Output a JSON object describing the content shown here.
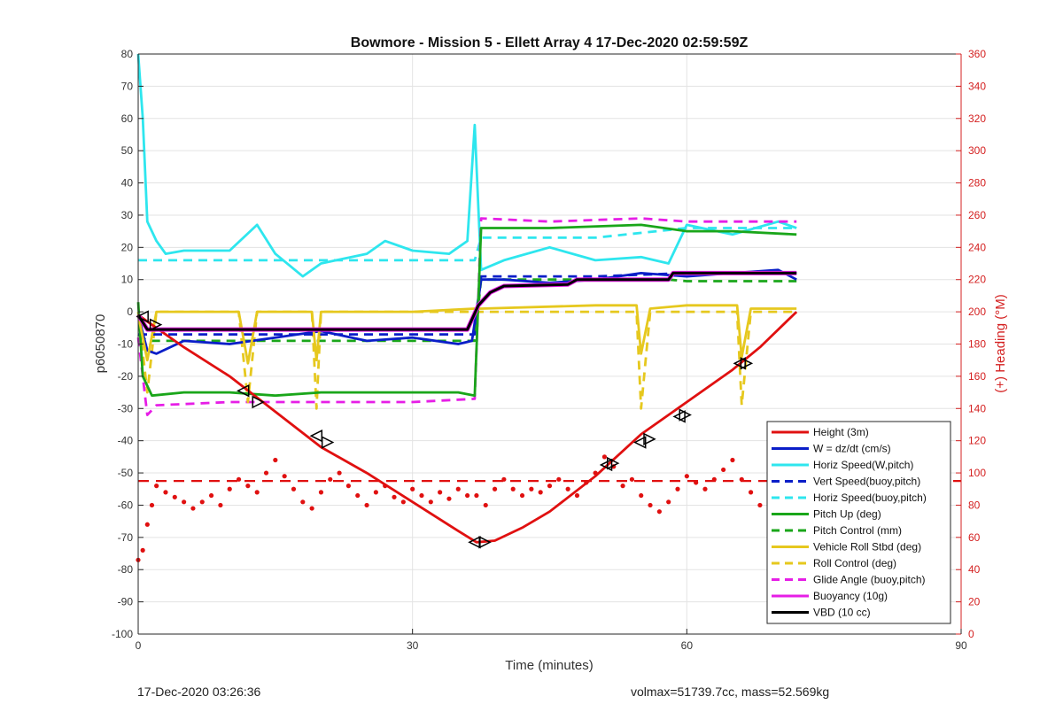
{
  "figure": {
    "title": "Bowmore - Mission 5 - Ellett Array 4 17-Dec-2020 02:59:59Z",
    "footer_left": "17-Dec-2020 03:26:36",
    "footer_right": "volmax=51739.7cc, mass=52.569kg"
  },
  "colors": {
    "red": "#e01010",
    "blue": "#0a1ec8",
    "cyan": "#2ee6ee",
    "green": "#1aa61a",
    "yellow": "#e6c81e",
    "magenta": "#e61ee6",
    "black": "#000000",
    "right_axis": "#d42020"
  },
  "chart_data": {
    "type": "line",
    "title": "Bowmore - Mission 5 - Ellett Array 4 17-Dec-2020 02:59:59Z",
    "xlabel": "Time (minutes)",
    "ylabel": "p6050870",
    "ylabel_right": "(+) Heading (°M)",
    "xlim": [
      0,
      90
    ],
    "ylim": [
      -100,
      80
    ],
    "ylim_right": [
      0,
      360
    ],
    "xticks": [
      0,
      30,
      60,
      90
    ],
    "yticks": [
      -100,
      -90,
      -80,
      -70,
      -60,
      -50,
      -40,
      -30,
      -20,
      -10,
      0,
      10,
      20,
      30,
      40,
      50,
      60,
      70,
      80
    ],
    "yticks_right": [
      0,
      20,
      40,
      60,
      80,
      100,
      120,
      140,
      160,
      180,
      200,
      220,
      240,
      260,
      280,
      300,
      320,
      340,
      360
    ],
    "grid": true,
    "legend_position": "bottom-right",
    "series": [
      {
        "name": "Height (3m)",
        "style": "solid",
        "color": "#e01010",
        "x": [
          0,
          2,
          5,
          10,
          15,
          20,
          25,
          30,
          35,
          37,
          39,
          42,
          45,
          50,
          55,
          60,
          65,
          68,
          72
        ],
        "y": [
          -1,
          -5,
          -11,
          -20,
          -31,
          -42,
          -50,
          -59,
          -68,
          -71.5,
          -71,
          -67,
          -62,
          -51,
          -38,
          -28,
          -18,
          -11,
          0
        ]
      },
      {
        "name": "W = dz/dt (cm/s)",
        "style": "solid",
        "color": "#0a1ec8",
        "x": [
          0,
          1,
          2,
          5,
          10,
          15,
          20,
          25,
          30,
          35,
          36.5,
          37.5,
          40,
          45,
          50,
          55,
          60,
          65,
          70,
          72
        ],
        "y": [
          -1,
          -12,
          -13,
          -9,
          -10,
          -8,
          -6,
          -9,
          -8,
          -10,
          -9,
          10,
          10,
          9,
          10,
          12,
          11,
          12,
          13,
          10
        ]
      },
      {
        "name": "Horiz Speed(W,pitch)",
        "style": "solid",
        "color": "#2ee6ee",
        "x": [
          0,
          0.5,
          1,
          2,
          3,
          5,
          10,
          13,
          15,
          18,
          20,
          25,
          27,
          30,
          34,
          36,
          36.8,
          37.5,
          40,
          45,
          50,
          55,
          58,
          60,
          65,
          70,
          72
        ],
        "y": [
          80,
          60,
          28,
          22,
          18,
          19,
          19,
          27,
          18,
          11,
          15,
          18,
          22,
          19,
          18,
          22,
          58,
          13,
          16,
          20,
          16,
          17,
          15,
          27,
          24,
          28,
          26
        ]
      },
      {
        "name": "Vert Speed(buoy,pitch)",
        "style": "dashed",
        "color": "#0a1ec8",
        "x": [
          0,
          2,
          10,
          20,
          30,
          36.8,
          37.5,
          50,
          60,
          72
        ],
        "y": [
          -7,
          -7,
          -7,
          -7,
          -7,
          -7,
          11,
          11,
          12,
          12
        ]
      },
      {
        "name": "Horiz Speed(buoy,pitch)",
        "style": "dashed",
        "color": "#2ee6ee",
        "x": [
          0,
          2,
          10,
          20,
          30,
          36.8,
          37.5,
          50,
          60,
          72
        ],
        "y": [
          16,
          16,
          16,
          16,
          16,
          16,
          23,
          23,
          26,
          26
        ]
      },
      {
        "name": "Pitch Up (deg)",
        "style": "solid",
        "color": "#1aa61a",
        "x": [
          0,
          0.5,
          1.5,
          5,
          10,
          15,
          20,
          25,
          30,
          35,
          36.8,
          37.5,
          45,
          55,
          60,
          65,
          72
        ],
        "y": [
          3,
          -20,
          -26,
          -25,
          -25,
          -26,
          -25,
          -25,
          -25,
          -25,
          -26,
          26,
          26,
          27,
          25,
          25,
          24
        ]
      },
      {
        "name": "Pitch Control (mm)",
        "style": "dashed",
        "color": "#1aa61a",
        "x": [
          0,
          1,
          2,
          10,
          20,
          30,
          36.8,
          37.5,
          45,
          50,
          58,
          60,
          72
        ],
        "y": [
          -7,
          -9,
          -9,
          -9,
          -9,
          -9,
          -9,
          10,
          10,
          10,
          10,
          9.5,
          9.5
        ]
      },
      {
        "name": "Vehicle Roll Stbd (deg)",
        "style": "solid",
        "color": "#e6c81e",
        "x": [
          0,
          1,
          2,
          11,
          12,
          13,
          19,
          19.5,
          20,
          30,
          36.8,
          37.5,
          50,
          54.5,
          55,
          56,
          60,
          65.5,
          66,
          67,
          72
        ],
        "y": [
          -1,
          -15,
          0,
          0,
          -16,
          0,
          0,
          -15,
          0,
          0,
          1,
          1,
          2,
          2,
          -13,
          1,
          2,
          2,
          -14,
          1,
          1
        ]
      },
      {
        "name": "Roll Control (deg)",
        "style": "dashed",
        "color": "#e6c81e",
        "x": [
          0,
          1,
          2,
          11,
          12,
          13,
          19,
          19.5,
          20,
          30,
          36.8,
          37.5,
          50,
          54.5,
          55,
          56,
          60,
          65.5,
          66,
          67,
          72
        ],
        "y": [
          0,
          -25,
          0,
          0,
          -28,
          0,
          0,
          -30,
          0,
          0,
          0,
          0,
          0,
          0,
          -30,
          0,
          0,
          0,
          -29,
          0,
          0
        ]
      },
      {
        "name": "Glide Angle (buoy,pitch)",
        "style": "dashed",
        "color": "#e61ee6",
        "x": [
          0,
          1,
          2,
          10,
          20,
          30,
          36.8,
          37.5,
          45,
          55,
          60,
          72
        ],
        "y": [
          -8,
          -32,
          -29,
          -28,
          -28,
          -28,
          -27,
          29,
          28,
          29,
          28,
          28
        ]
      },
      {
        "name": "Buoyancy (10g)",
        "style": "solid",
        "color": "#e61ee6",
        "x": [
          0,
          1,
          20,
          36,
          37.2,
          38.5,
          40,
          47,
          48,
          58,
          58.5,
          72
        ],
        "y": [
          -1,
          -5.5,
          -5.5,
          -5.5,
          2,
          6,
          8,
          8.5,
          10,
          10,
          12,
          12
        ]
      },
      {
        "name": "VBD (10 cc)",
        "style": "solid",
        "color": "#000000",
        "x": [
          0,
          1,
          20,
          36,
          37.2,
          38.5,
          40,
          47,
          48,
          58,
          58.5,
          72
        ],
        "y": [
          -1,
          -5.5,
          -5.5,
          -5.5,
          2,
          6,
          8,
          8.5,
          10,
          10,
          12,
          12
        ]
      }
    ],
    "heading_series": {
      "axis": "right",
      "color": "#e01010",
      "style": "dotted",
      "x": [
        0,
        0.5,
        1,
        1.5,
        2,
        3,
        4,
        5,
        6,
        7,
        8,
        9,
        10,
        11,
        12,
        13,
        14,
        15,
        16,
        17,
        18,
        19,
        20,
        21,
        22,
        23,
        24,
        25,
        26,
        27,
        28,
        29,
        30,
        31,
        32,
        33,
        34,
        35,
        36,
        37,
        38,
        39,
        40,
        41,
        42,
        43,
        44,
        45,
        46,
        47,
        48,
        49,
        50,
        51,
        52,
        53,
        54,
        55,
        56,
        57,
        58,
        59,
        60,
        61,
        62,
        63,
        64,
        65,
        66,
        67,
        68,
        69,
        70,
        71,
        72
      ],
      "y": [
        46,
        52,
        68,
        80,
        92,
        88,
        85,
        82,
        78,
        82,
        86,
        80,
        90,
        96,
        92,
        88,
        100,
        108,
        98,
        90,
        82,
        78,
        88,
        96,
        100,
        92,
        86,
        80,
        88,
        92,
        85,
        82,
        90,
        86,
        82,
        88,
        84,
        90,
        86,
        86,
        80,
        90,
        96,
        90,
        86,
        90,
        88,
        92,
        96,
        90,
        86,
        94,
        100,
        110,
        104,
        92,
        96,
        86,
        80,
        76,
        82,
        90,
        98,
        94,
        90,
        96,
        102,
        108,
        96,
        88,
        80,
        86,
        80,
        86,
        84
      ]
    },
    "heading_mean": {
      "axis": "right",
      "color": "#e01010",
      "style": "dashed",
      "value": 95
    },
    "markers": {
      "color": "#000000",
      "left": [
        [
          0.5,
          -1.5
        ],
        [
          11.5,
          -24.5
        ],
        [
          19.5,
          -38.5
        ],
        [
          36.8,
          -71.5
        ],
        [
          51.2,
          -47.5
        ],
        [
          54.9,
          -40.5
        ],
        [
          59.2,
          -32.5
        ],
        [
          65.8,
          -16
        ]
      ],
      "right": [
        [
          1.9,
          -4
        ],
        [
          13.1,
          -28
        ],
        [
          20.7,
          -40.5
        ],
        [
          37.9,
          -71.5
        ],
        [
          51.9,
          -47
        ],
        [
          55.9,
          -39.5
        ],
        [
          59.8,
          -32
        ],
        [
          66.5,
          -16
        ]
      ]
    }
  }
}
